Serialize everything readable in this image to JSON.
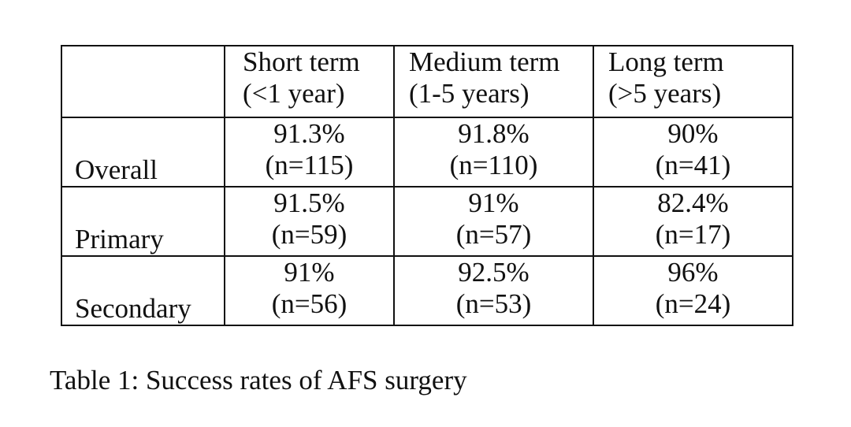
{
  "table": {
    "header": {
      "corner": "",
      "columns": [
        {
          "line1": "Short term",
          "line2": "(<1 year)"
        },
        {
          "line1": "Medium term",
          "line2": "(1-5 years)"
        },
        {
          "line1": "Long term",
          "line2": "(>5 years)"
        }
      ]
    },
    "rows": [
      {
        "label": "Overall",
        "cells": [
          {
            "rate": "91.3%",
            "n": "(n=115)"
          },
          {
            "rate": "91.8%",
            "n": "(n=110)"
          },
          {
            "rate": "90%",
            "n": "(n=41)"
          }
        ]
      },
      {
        "label": "Primary",
        "cells": [
          {
            "rate": "91.5%",
            "n": "(n=59)"
          },
          {
            "rate": "91%",
            "n": "(n=57)"
          },
          {
            "rate": "82.4%",
            "n": "(n=17)"
          }
        ]
      },
      {
        "label": "Secondary",
        "cells": [
          {
            "rate": "91%",
            "n": "(n=56)"
          },
          {
            "rate": "92.5%",
            "n": "(n=53)"
          },
          {
            "rate": "96%",
            "n": "(n=24)"
          }
        ]
      }
    ]
  },
  "caption": "Table 1: Success rates of AFS surgery"
}
